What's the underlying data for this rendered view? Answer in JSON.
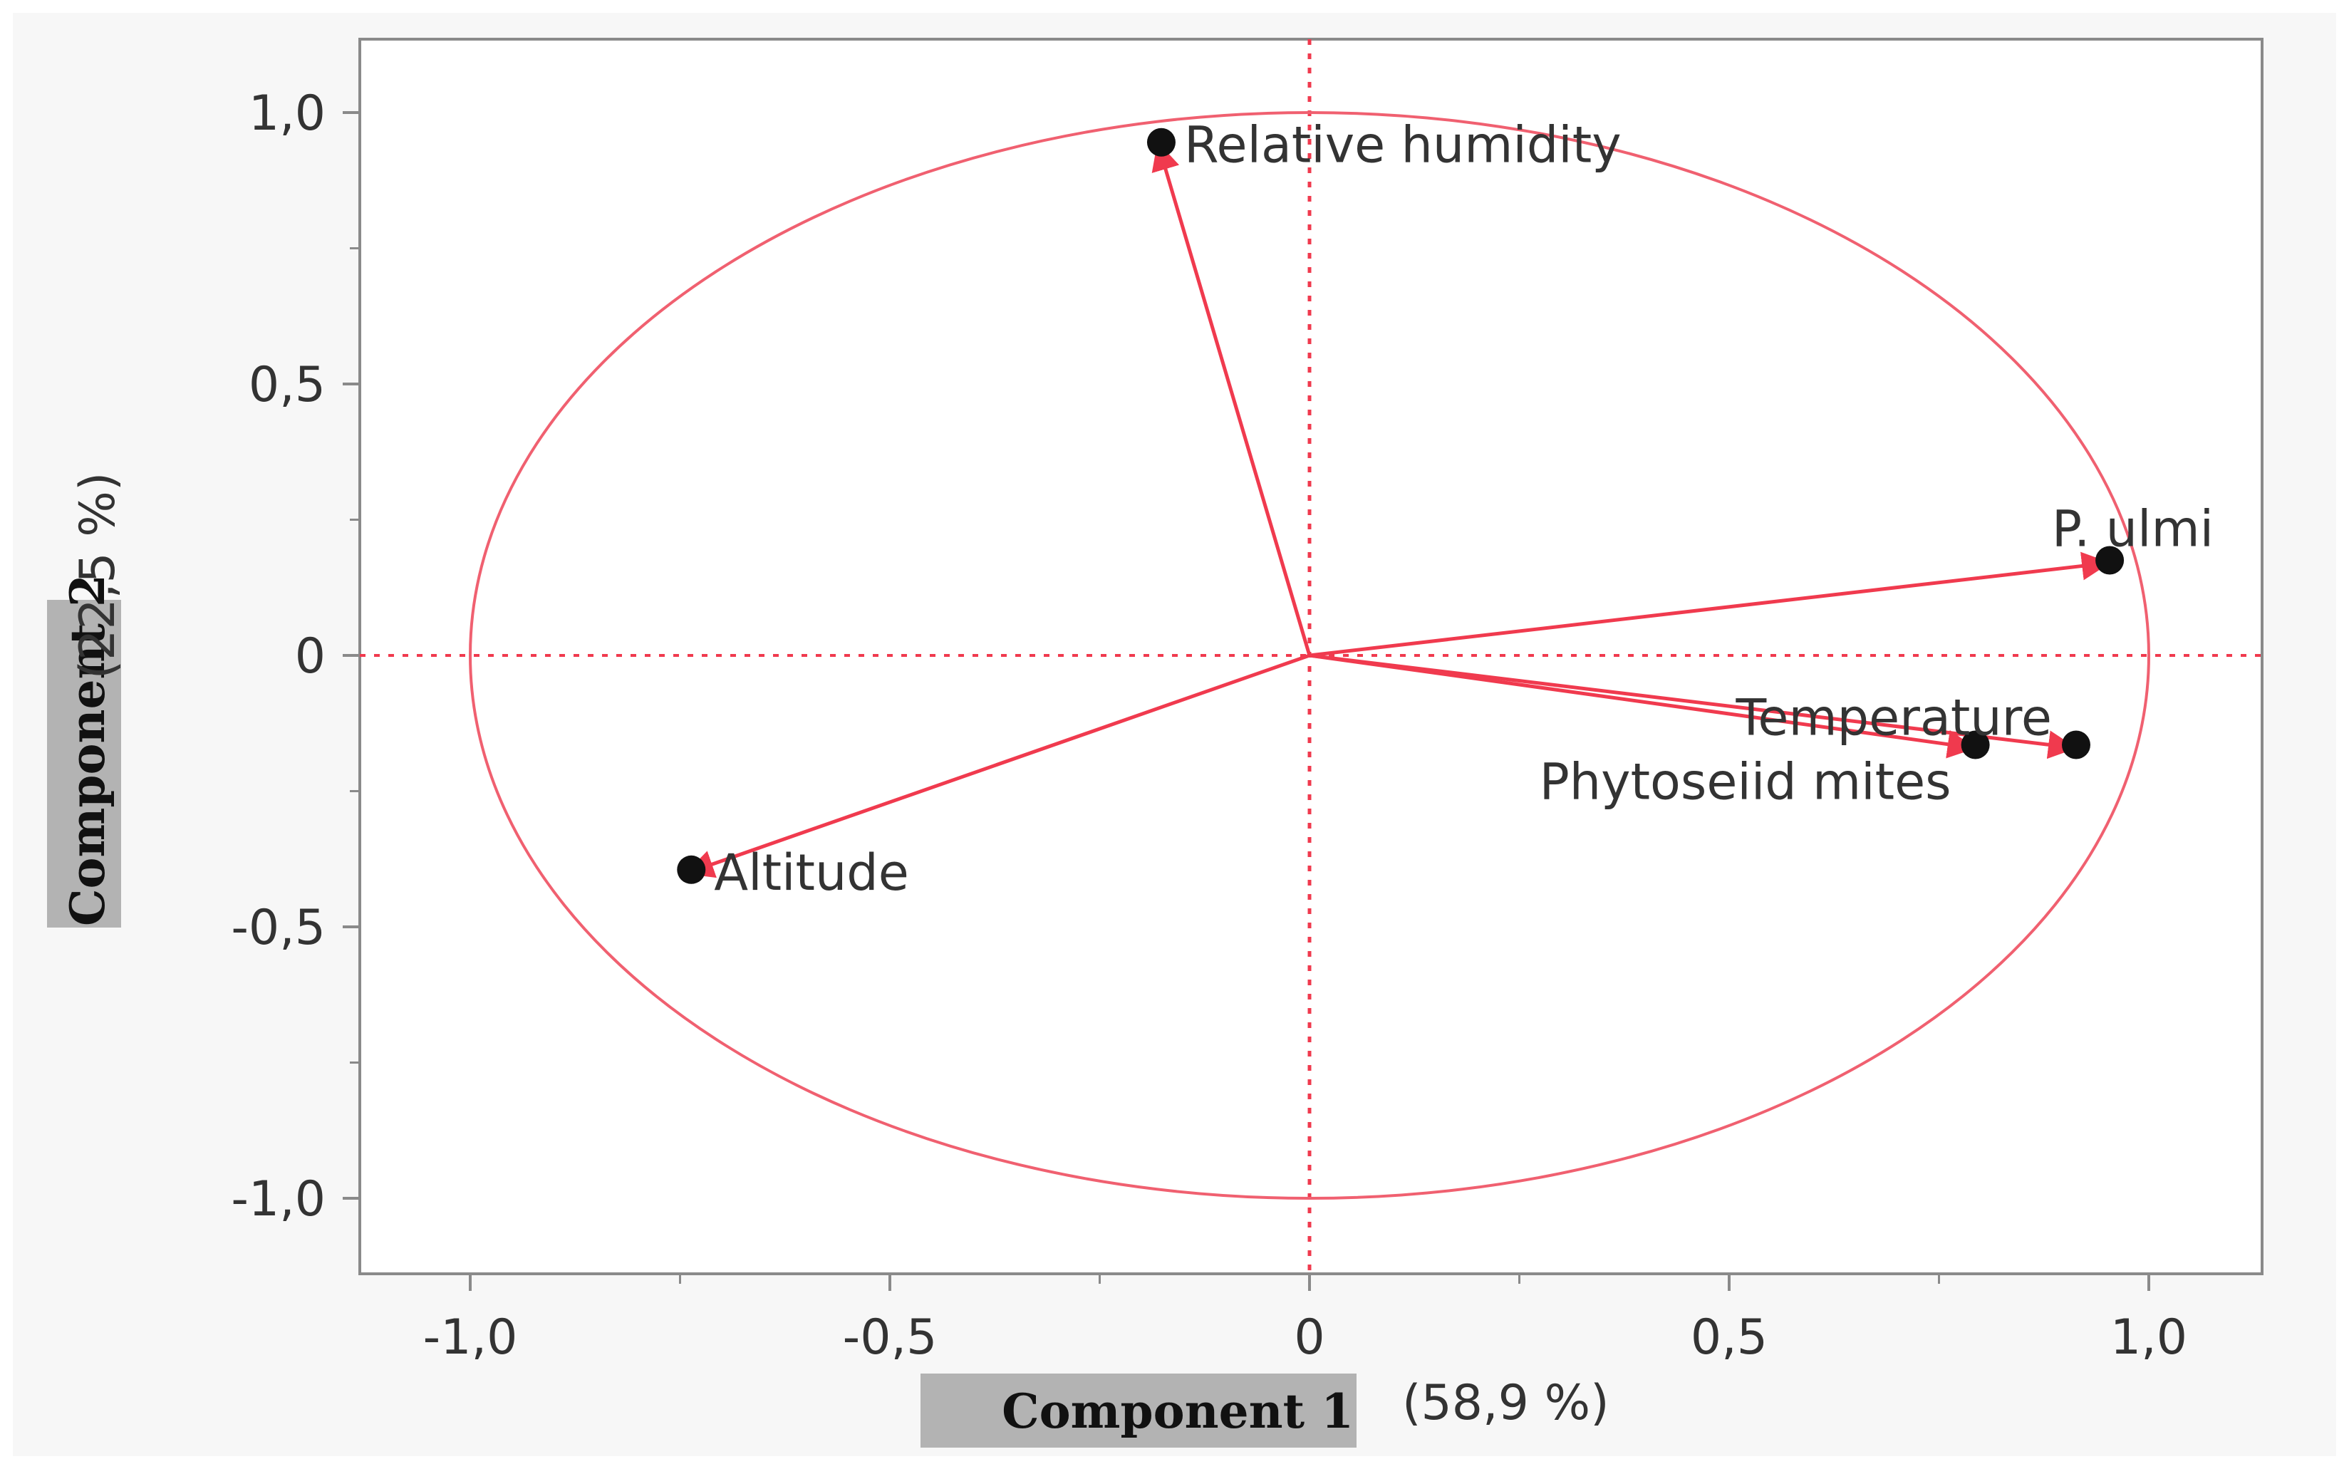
{
  "chart_data": {
    "type": "scatter",
    "subtype": "pca-loadings-biplot",
    "title": "",
    "xlabel": "Component 1",
    "xlabel_pct": "(58,9 %)",
    "ylabel": "Component 2",
    "ylabel_pct": "(22,5 %)",
    "xlim": [
      -1.1,
      1.15
    ],
    "ylim": [
      -1.15,
      1.13
    ],
    "x_ticks": [
      {
        "value": -1.0,
        "label": "-1,0"
      },
      {
        "value": -0.5,
        "label": "-0,5"
      },
      {
        "value": 0.0,
        "label": "0"
      },
      {
        "value": 0.5,
        "label": "0,5"
      },
      {
        "value": 1.0,
        "label": "1,0"
      }
    ],
    "y_ticks": [
      {
        "value": 1.0,
        "label": "1,0"
      },
      {
        "value": 0.5,
        "label": "0,5"
      },
      {
        "value": 0.0,
        "label": "0"
      },
      {
        "value": -0.5,
        "label": "-0,5"
      },
      {
        "value": -1.0,
        "label": "-1,0"
      }
    ],
    "minor_ticks": [
      -0.75,
      -0.25,
      0.25,
      0.75
    ],
    "unit_circle": true,
    "reference_lines": "dotted red at x=0 and y=0",
    "grid": false,
    "variables": [
      {
        "label": "Relative humidity",
        "x": -0.18,
        "y": 0.94,
        "label_side": "right"
      },
      {
        "label": "P. ulmi",
        "x": 0.95,
        "y": 0.17,
        "label_side": "above"
      },
      {
        "label": "Temperature",
        "x": 0.91,
        "y": -0.17,
        "label_side": "above-left"
      },
      {
        "label": "Phytoseiid mites",
        "x": 0.79,
        "y": -0.17,
        "label_side": "below-left"
      },
      {
        "label": "Altitude",
        "x": -0.74,
        "y": -0.4,
        "label_side": "right"
      }
    ],
    "colors": {
      "arrow": "#f03a4e",
      "circle": "#f06070",
      "point": "#111111",
      "axis": "#8a8a8a",
      "label_box": "#b3b3b3"
    }
  }
}
